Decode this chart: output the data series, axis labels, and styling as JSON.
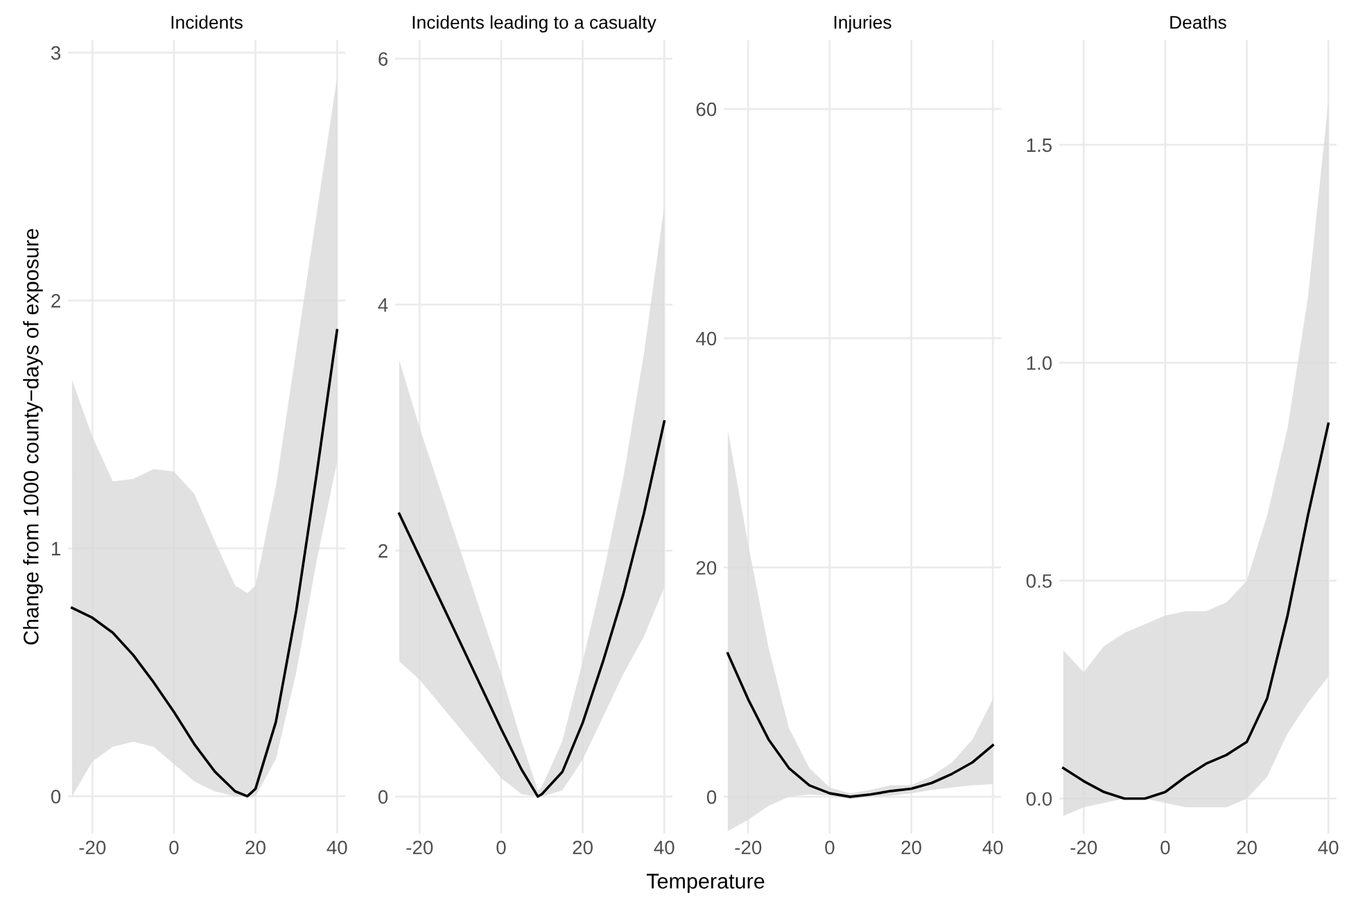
{
  "chart_data": [
    {
      "type": "line",
      "title": "Incidents",
      "ylabel": "Change from 1000 county−days of exposure",
      "xlim": [
        -26,
        42
      ],
      "xticks": [
        -20,
        0,
        20,
        40
      ],
      "ylim": [
        -0.15,
        3.05
      ],
      "yticks": [
        0,
        1,
        2,
        3
      ],
      "grid": true,
      "legend": false,
      "x": [
        -25,
        -20,
        -15,
        -10,
        -5,
        0,
        5,
        10,
        15,
        18,
        20,
        25,
        30,
        35,
        40
      ],
      "series": [
        {
          "color": "#000000",
          "values": [
            0.76,
            0.72,
            0.66,
            0.57,
            0.46,
            0.34,
            0.21,
            0.1,
            0.02,
            0,
            0.03,
            0.3,
            0.75,
            1.3,
            1.88
          ],
          "lower": [
            0,
            0.14,
            0.2,
            0.22,
            0.2,
            0.13,
            0.06,
            0.02,
            0,
            0,
            0,
            0.15,
            0.5,
            0.95,
            1.35
          ],
          "upper": [
            1.68,
            1.45,
            1.27,
            1.28,
            1.32,
            1.31,
            1.22,
            1.03,
            0.85,
            0.82,
            0.85,
            1.25,
            1.8,
            2.35,
            2.9
          ]
        }
      ]
    },
    {
      "type": "line",
      "title": "Incidents leading to a casualty",
      "xlabel": "Temperature",
      "xlim": [
        -26,
        42
      ],
      "xticks": [
        -20,
        0,
        20,
        40
      ],
      "ylim": [
        -0.3,
        6.15
      ],
      "yticks": [
        0,
        2,
        4,
        6
      ],
      "grid": true,
      "legend": false,
      "x": [
        -25,
        -20,
        -15,
        -10,
        -5,
        0,
        5,
        9,
        10,
        15,
        20,
        25,
        30,
        35,
        40
      ],
      "series": [
        {
          "color": "#000000",
          "values": [
            2.3,
            1.95,
            1.6,
            1.25,
            0.9,
            0.55,
            0.22,
            0,
            0.02,
            0.2,
            0.6,
            1.1,
            1.65,
            2.3,
            3.05
          ],
          "lower": [
            1.1,
            0.95,
            0.75,
            0.55,
            0.35,
            0.15,
            0.02,
            0,
            0,
            0.05,
            0.3,
            0.65,
            1.0,
            1.3,
            1.7
          ],
          "upper": [
            3.55,
            3.0,
            2.5,
            2.0,
            1.5,
            1.0,
            0.45,
            0.05,
            0.08,
            0.45,
            1.1,
            1.8,
            2.6,
            3.6,
            4.8
          ]
        }
      ]
    },
    {
      "type": "line",
      "title": "Injuries",
      "xlim": [
        -26,
        42
      ],
      "xticks": [
        -20,
        0,
        20,
        40
      ],
      "ylim": [
        -3.2,
        66
      ],
      "yticks": [
        0,
        20,
        40,
        60
      ],
      "grid": true,
      "legend": false,
      "x": [
        -25,
        -20,
        -15,
        -10,
        -5,
        0,
        5,
        10,
        15,
        20,
        25,
        30,
        35,
        40
      ],
      "series": [
        {
          "color": "#000000",
          "values": [
            12.5,
            8.5,
            5,
            2.5,
            1,
            0.3,
            0,
            0.2,
            0.5,
            0.7,
            1.2,
            2,
            3,
            4.5
          ],
          "lower": [
            -3,
            -2,
            -0.8,
            0,
            0.2,
            0.1,
            -0.2,
            0,
            0.1,
            0.3,
            0.6,
            0.8,
            1,
            1.1
          ],
          "upper": [
            32,
            22,
            13,
            6,
            2.5,
            0.8,
            0.3,
            0.6,
            1,
            1,
            1.8,
            3,
            5,
            8.5
          ]
        }
      ]
    },
    {
      "type": "line",
      "title": "Deaths",
      "xlim": [
        -26,
        42
      ],
      "xticks": [
        -20,
        0,
        20,
        40
      ],
      "ylim": [
        -0.08,
        1.74
      ],
      "yticks": [
        {
          "value": 0,
          "label": "0.0"
        },
        0.5,
        {
          "value": 1,
          "label": "1.0"
        },
        1.5
      ],
      "grid": true,
      "legend": false,
      "x": [
        -25,
        -20,
        -15,
        -10,
        -5,
        0,
        5,
        10,
        15,
        20,
        25,
        30,
        35,
        40
      ],
      "series": [
        {
          "color": "#000000",
          "values": [
            0.07,
            0.04,
            0.015,
            0,
            0,
            0.015,
            0.05,
            0.08,
            0.1,
            0.13,
            0.23,
            0.42,
            0.65,
            0.86
          ],
          "lower": [
            -0.04,
            -0.02,
            -0.01,
            0,
            0,
            -0.01,
            -0.02,
            -0.02,
            -0.02,
            0,
            0.05,
            0.15,
            0.22,
            0.28
          ],
          "upper": [
            0.34,
            0.29,
            0.35,
            0.38,
            0.4,
            0.42,
            0.43,
            0.43,
            0.45,
            0.5,
            0.65,
            0.85,
            1.15,
            1.6
          ]
        }
      ]
    }
  ]
}
